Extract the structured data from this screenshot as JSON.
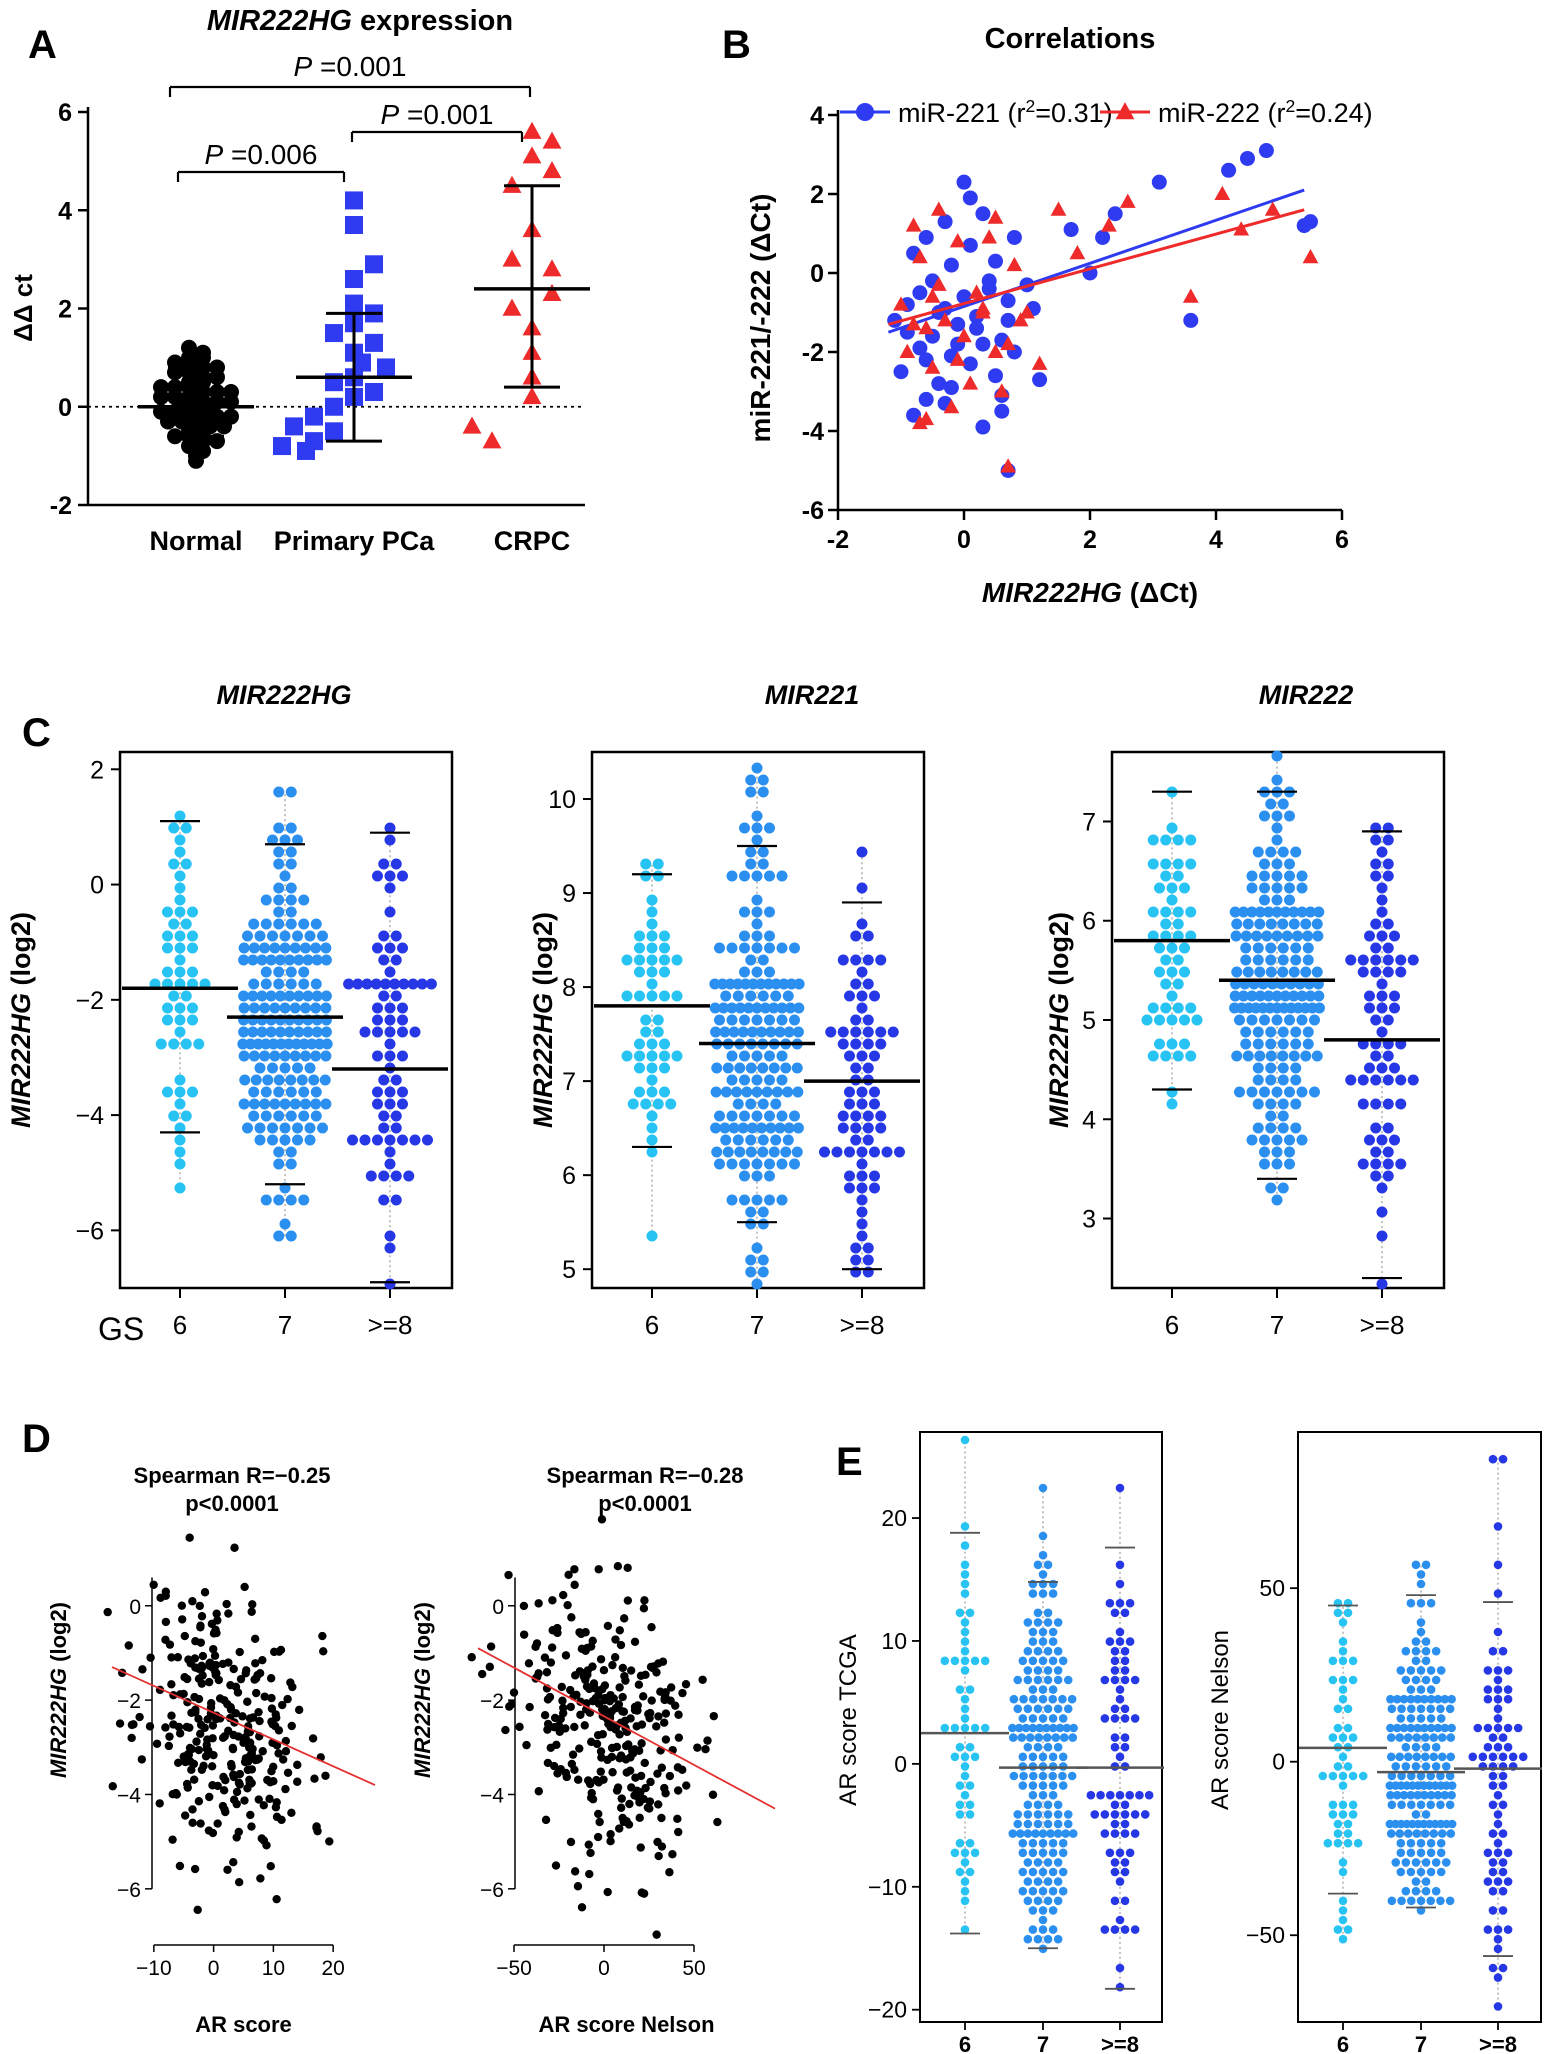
{
  "colors": {
    "black": "#000000",
    "blue": "#2e3bf0",
    "red": "#ee2a2a",
    "gs6": "#27c3f2",
    "gs7": "#2b8ff0",
    "gs8": "#2637e6",
    "grey": "#888888",
    "fitred": "#e53030"
  },
  "chart_data": [
    {
      "id": "A",
      "type": "scatter",
      "panel_label": "A",
      "title": "MIR222HG expression",
      "title_italic": "MIR222HG",
      "title_rest": " expression",
      "ylabel": "ΔΔ ct",
      "ylim": [
        -2,
        6
      ],
      "yticks": [
        -2,
        0,
        2,
        4,
        6
      ],
      "categories": [
        "Normal",
        "Primary PCa",
        "CRPC"
      ],
      "series": [
        {
          "name": "Normal",
          "marker": "circle",
          "color": "#000000",
          "mean": 0.0,
          "lower": -0.6,
          "upper": 0.8,
          "values": [
            1.2,
            1.1,
            1.0,
            1.0,
            0.9,
            0.9,
            0.8,
            0.8,
            0.7,
            0.7,
            0.6,
            0.6,
            0.5,
            0.5,
            0.4,
            0.4,
            0.4,
            0.3,
            0.3,
            0.3,
            0.2,
            0.2,
            0.2,
            0.1,
            0.1,
            0.1,
            0.0,
            0.0,
            0.0,
            -0.1,
            -0.1,
            -0.1,
            -0.2,
            -0.2,
            -0.2,
            -0.3,
            -0.3,
            -0.3,
            -0.4,
            -0.4,
            -0.5,
            -0.5,
            -0.6,
            -0.6,
            -0.7,
            -0.7,
            -0.8,
            -0.9,
            -1.0,
            -1.1
          ]
        },
        {
          "name": "Primary PCa",
          "marker": "square",
          "color": "#2e3bf0",
          "mean": 0.6,
          "lower": -0.7,
          "upper": 1.9,
          "values": [
            4.2,
            3.7,
            2.9,
            2.6,
            2.1,
            1.9,
            1.7,
            1.5,
            1.3,
            1.1,
            0.9,
            0.8,
            0.6,
            0.5,
            0.3,
            0.2,
            0.0,
            -0.2,
            -0.4,
            -0.5,
            -0.7,
            -0.8,
            -0.9
          ]
        },
        {
          "name": "CRPC",
          "marker": "triangle",
          "color": "#ee2a2a",
          "mean": 2.4,
          "lower": 0.4,
          "upper": 4.5,
          "values": [
            5.6,
            5.4,
            5.1,
            4.8,
            4.5,
            3.6,
            3.0,
            2.8,
            2.3,
            2.0,
            1.6,
            1.1,
            0.6,
            0.2,
            -0.4,
            -0.7
          ]
        }
      ],
      "annotations": [
        {
          "text": "P =0.006",
          "from": "Normal",
          "to": "Primary PCa"
        },
        {
          "text": "P =0.001",
          "from": "Primary PCa",
          "to": "CRPC"
        },
        {
          "text": "P =0.001",
          "from": "Normal",
          "to": "CRPC"
        }
      ]
    },
    {
      "id": "B",
      "type": "scatter",
      "panel_label": "B",
      "title": "Correlations",
      "xlabel": "MIR222HG (ΔCt)",
      "xlabel_italic": "MIR222HG",
      "xlabel_rest": " (ΔCt)",
      "ylabel": "miR-221/-222 (ΔCt)",
      "xlim": [
        -2,
        6
      ],
      "ylim": [
        -6,
        4
      ],
      "xticks": [
        -2,
        0,
        2,
        4,
        6
      ],
      "yticks": [
        -6,
        -4,
        -2,
        0,
        2,
        4
      ],
      "legend_position": "top",
      "series": [
        {
          "name": "miR-221",
          "legend_main": "miR-221 (r",
          "legend_sup": "2",
          "legend_tail": "=0.31)",
          "marker": "circle",
          "color": "#2e3bf0",
          "fit": {
            "x": [
              -1.2,
              5.4
            ],
            "y": [
              -1.5,
              2.1
            ]
          },
          "x": [
            -1.1,
            -1.0,
            -0.9,
            -0.8,
            -0.8,
            -0.7,
            -0.6,
            -0.6,
            -0.5,
            -0.5,
            -0.4,
            -0.3,
            -0.3,
            -0.2,
            -0.2,
            -0.1,
            0.0,
            0.0,
            0.1,
            0.1,
            0.2,
            0.3,
            0.3,
            0.4,
            0.5,
            0.5,
            0.6,
            0.6,
            0.7,
            0.7,
            0.8,
            0.8,
            1.0,
            1.2,
            -0.9,
            -0.7,
            -0.4,
            -0.1,
            0.2,
            0.4,
            0.7,
            1.1,
            -0.6,
            -0.2,
            0.3,
            0.6,
            2.0,
            2.4,
            3.1,
            3.6,
            4.2,
            4.5,
            4.8,
            5.4,
            5.5,
            1.7,
            2.2,
            -0.3,
            0.1
          ],
          "y": [
            -1.2,
            -2.5,
            -0.8,
            -3.6,
            0.5,
            -1.9,
            -3.2,
            0.9,
            -0.2,
            -1.6,
            -2.8,
            1.3,
            -0.9,
            -2.1,
            0.2,
            -1.3,
            2.3,
            -0.6,
            -2.3,
            0.7,
            -1.1,
            -3.9,
            1.5,
            -0.4,
            -2.6,
            0.3,
            -1.7,
            -3.1,
            -5.0,
            -0.7,
            -2.0,
            0.9,
            -0.3,
            -2.7,
            -1.5,
            -0.5,
            -1.0,
            -1.8,
            -1.4,
            -0.2,
            -1.2,
            -0.9,
            -2.2,
            -2.9,
            -1.8,
            -3.5,
            0.0,
            1.5,
            2.3,
            -1.2,
            2.6,
            2.9,
            3.1,
            1.2,
            1.3,
            1.1,
            0.9,
            -3.3,
            1.9
          ]
        },
        {
          "name": "miR-222",
          "legend_main": "miR-222 (r",
          "legend_sup": "2",
          "legend_tail": "=0.24)",
          "marker": "triangle",
          "color": "#ee2a2a",
          "fit": {
            "x": [
              -1.2,
              5.4
            ],
            "y": [
              -1.3,
              1.6
            ]
          },
          "x": [
            -1.0,
            -0.9,
            -0.8,
            -0.7,
            -0.7,
            -0.6,
            -0.5,
            -0.4,
            -0.4,
            -0.3,
            -0.2,
            -0.1,
            0.0,
            0.1,
            0.2,
            0.3,
            0.4,
            0.5,
            0.6,
            0.7,
            0.8,
            1.0,
            1.2,
            -0.8,
            -0.5,
            -0.1,
            0.3,
            0.7,
            1.5,
            1.8,
            2.3,
            2.6,
            3.6,
            4.1,
            4.4,
            4.9,
            5.5,
            -0.6,
            0.5,
            0.9
          ],
          "y": [
            -0.8,
            -2.0,
            1.2,
            -3.8,
            0.4,
            -1.4,
            -2.4,
            1.6,
            -0.3,
            -1.2,
            -3.4,
            0.8,
            -1.6,
            -2.8,
            -0.5,
            -1.0,
            0.9,
            -2.0,
            -3.0,
            -4.9,
            0.2,
            -1.0,
            -2.3,
            -1.3,
            -0.6,
            -2.2,
            -0.9,
            -1.8,
            1.6,
            0.5,
            1.2,
            1.8,
            -0.6,
            2.0,
            1.1,
            1.6,
            0.4,
            -3.7,
            1.4,
            -1.2
          ]
        }
      ]
    },
    {
      "id": "C",
      "panel_label": "C",
      "type": "scatter",
      "panels": [
        {
          "title": "MIR222HG",
          "ylabel_italic": "MIR222HG",
          "ylabel_rest": " (log2)",
          "ylim": [
            -7,
            2.3
          ],
          "yticks": [
            -6,
            -4,
            -2,
            0,
            2
          ],
          "ytick_labels": [
            "−6",
            "−4",
            "−2",
            "0",
            "2"
          ],
          "categories": [
            "6",
            "7",
            ">=8"
          ],
          "xlabel_prefix": "GS",
          "groups": [
            {
              "median": -1.8,
              "whisker": [
                -4.3,
                1.1
              ],
              "range": [
                -5.2,
                1.1
              ],
              "n": 55
            },
            {
              "median": -2.3,
              "whisker": [
                -5.2,
                0.7
              ],
              "range": [
                -6.1,
                1.6
              ],
              "n": 180
            },
            {
              "median": -3.2,
              "whisker": [
                -6.9,
                0.9
              ],
              "range": [
                -6.9,
                1.0
              ],
              "n": 75
            }
          ]
        },
        {
          "title": "MIR221",
          "ylabel_italic": "MIR222HG",
          "ylabel_rest": " (log2)",
          "ylim": [
            4.8,
            10.5
          ],
          "yticks": [
            5,
            6,
            7,
            8,
            9,
            10
          ],
          "ytick_labels": [
            "5",
            "6",
            "7",
            "8",
            "9",
            "10"
          ],
          "categories": [
            "6",
            "7",
            ">=8"
          ],
          "groups": [
            {
              "median": 7.8,
              "whisker": [
                6.3,
                9.2
              ],
              "range": [
                5.4,
                9.3
              ],
              "n": 55
            },
            {
              "median": 7.4,
              "whisker": [
                5.5,
                9.5
              ],
              "range": [
                4.9,
                10.3
              ],
              "n": 180
            },
            {
              "median": 7.0,
              "whisker": [
                5.0,
                8.9
              ],
              "range": [
                5.0,
                9.5
              ],
              "n": 75
            }
          ]
        },
        {
          "title": "MIR222",
          "ylabel_italic": "MIR222HG",
          "ylabel_rest": " (log2)",
          "ylim": [
            2.3,
            7.7
          ],
          "yticks": [
            3,
            4,
            5,
            6,
            7
          ],
          "ytick_labels": [
            "3",
            "4",
            "5",
            "6",
            "7"
          ],
          "categories": [
            "6",
            "7",
            ">=8"
          ],
          "groups": [
            {
              "median": 5.8,
              "whisker": [
                4.3,
                7.3
              ],
              "range": [
                4.2,
                7.3
              ],
              "n": 55
            },
            {
              "median": 5.4,
              "whisker": [
                3.4,
                7.3
              ],
              "range": [
                3.2,
                7.6
              ],
              "n": 180
            },
            {
              "median": 4.8,
              "whisker": [
                2.4,
                6.9
              ],
              "range": [
                2.4,
                6.9
              ],
              "n": 75
            }
          ]
        }
      ]
    },
    {
      "id": "D",
      "panel_label": "D",
      "type": "scatter",
      "panels": [
        {
          "title_line1": "Spearman R=−0.25",
          "title_line2": "p<0.0001",
          "xlabel": "AR score",
          "ylabel_italic": "MIR222HG",
          "ylabel_rest": " (log2)",
          "xlim": [
            -17,
            27
          ],
          "ylim": [
            -7,
            1.5
          ],
          "xticks": [
            -10,
            0,
            10,
            20
          ],
          "xtick_labels": [
            "−10",
            "0",
            "10",
            "20"
          ],
          "yticks": [
            -6,
            -4,
            -2,
            0
          ],
          "ytick_labels": [
            "−6",
            "−4",
            "−2",
            "0"
          ],
          "fit": {
            "x": [
              -17,
              27
            ],
            "y": [
              -1.3,
              -3.8
            ]
          },
          "n": 300,
          "seed": 11,
          "xmean": 2,
          "xsd": 7,
          "ymean": -2.5,
          "ysd": 1.4,
          "slope": -0.057
        },
        {
          "title_line1": "Spearman R=−0.28",
          "title_line2": "p<0.0001",
          "xlabel": "AR score Nelson",
          "ylabel_italic": "MIR222HG",
          "ylabel_rest": " (log2)",
          "xlim": [
            -70,
            95
          ],
          "ylim": [
            -7,
            1.5
          ],
          "xticks": [
            -50,
            0,
            50
          ],
          "xtick_labels": [
            "−50",
            "0",
            "50"
          ],
          "yticks": [
            -6,
            -4,
            -2,
            0
          ],
          "ytick_labels": [
            "−6",
            "−4",
            "−2",
            "0"
          ],
          "fit": {
            "x": [
              -70,
              95
            ],
            "y": [
              -0.9,
              -4.3
            ]
          },
          "n": 300,
          "seed": 23,
          "xmean": 0,
          "xsd": 25,
          "ymean": -2.5,
          "ysd": 1.4,
          "slope": -0.021
        }
      ]
    },
    {
      "id": "E",
      "panel_label": "E",
      "type": "scatter",
      "panels": [
        {
          "ylabel": "AR score TCGA",
          "ylim": [
            -21,
            27
          ],
          "yticks": [
            -20,
            -10,
            0,
            10,
            20
          ],
          "ytick_labels": [
            "−20",
            "−10",
            "0",
            "10",
            "20"
          ],
          "categories": [
            "6",
            "7",
            ">=8"
          ],
          "groups": [
            {
              "median": 2.5,
              "whisker": [
                -13.8,
                18.8
              ],
              "range": [
                -13.8,
                26.5
              ],
              "n": 55
            },
            {
              "median": -0.3,
              "whisker": [
                -15.0,
                14.8
              ],
              "range": [
                -15.0,
                22.5
              ],
              "n": 180
            },
            {
              "median": -0.3,
              "whisker": [
                -18.3,
                17.6
              ],
              "range": [
                -18.3,
                22.5
              ],
              "n": 75
            }
          ]
        },
        {
          "ylabel": "AR score Nelson",
          "ylim": [
            -75,
            95
          ],
          "yticks": [
            -50,
            0,
            50
          ],
          "ytick_labels": [
            "−50",
            "0",
            "50"
          ],
          "categories": [
            "6",
            "7",
            ">=8"
          ],
          "groups": [
            {
              "median": 4,
              "whisker": [
                -38,
                45
              ],
              "range": [
                -51,
                45
              ],
              "n": 55
            },
            {
              "median": -3,
              "whisker": [
                -42,
                48
              ],
              "range": [
                -42,
                57
              ],
              "n": 180
            },
            {
              "median": -2,
              "whisker": [
                -56,
                46
              ],
              "range": [
                -70,
                88
              ],
              "n": 75
            }
          ]
        }
      ]
    }
  ]
}
